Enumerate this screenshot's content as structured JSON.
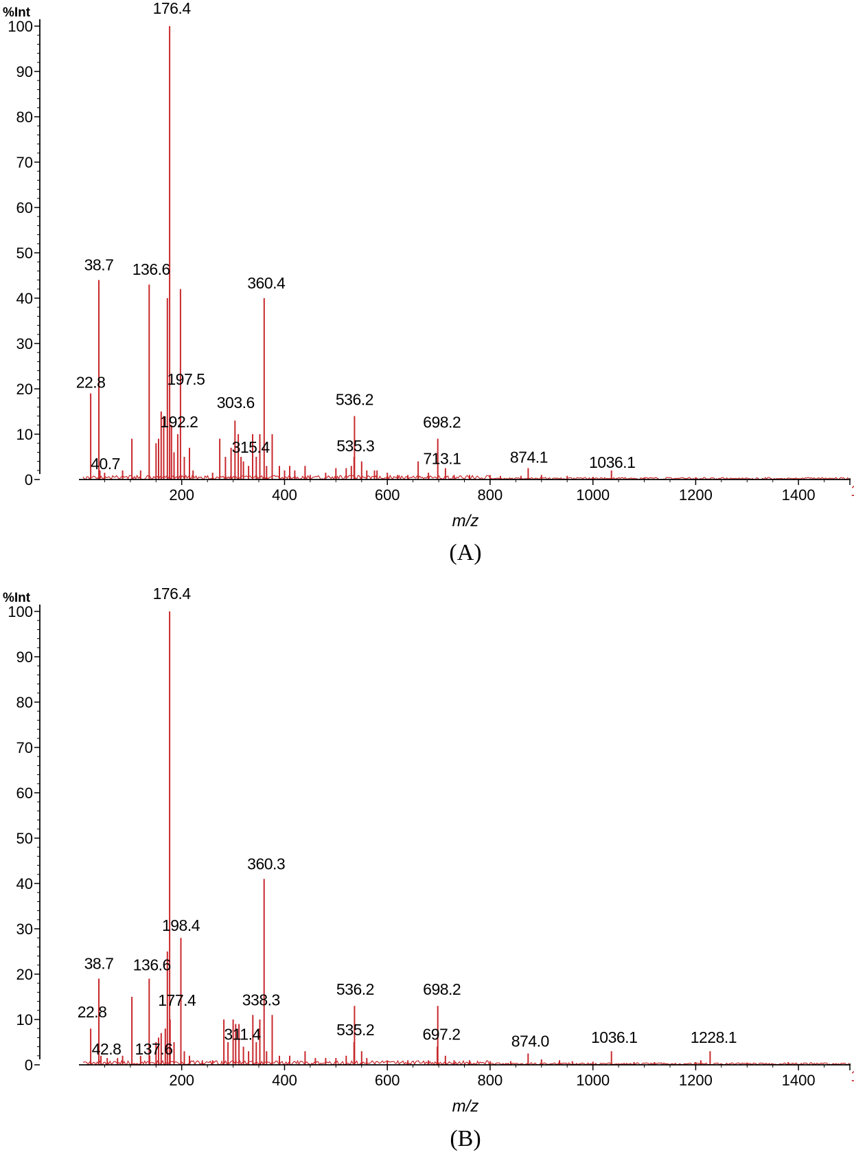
{
  "colors": {
    "trace": "#c8282c",
    "axis": "#000000",
    "edge_mark": "#c8282c"
  },
  "chart_data": [
    {
      "type": "line",
      "panel": "A",
      "caption": "(A)",
      "ylabel": "%Int",
      "xlabel": "m/z",
      "xlim": [
        0,
        1500
      ],
      "ylim": [
        0,
        100
      ],
      "xticks": [
        200,
        400,
        600,
        800,
        1000,
        1200,
        1400
      ],
      "yticks": [
        0,
        10,
        20,
        30,
        40,
        50,
        60,
        70,
        80,
        90,
        100
      ],
      "edge_mark": "1",
      "peaks": [
        [
          22.8,
          19
        ],
        [
          38.7,
          44
        ],
        [
          40.7,
          2
        ],
        [
          50,
          1.5
        ],
        [
          85,
          2
        ],
        [
          103,
          9
        ],
        [
          120,
          2
        ],
        [
          136.6,
          43
        ],
        [
          150,
          8
        ],
        [
          155,
          9
        ],
        [
          160,
          15
        ],
        [
          165,
          14
        ],
        [
          172,
          40
        ],
        [
          176.4,
          100
        ],
        [
          180,
          12
        ],
        [
          185,
          6
        ],
        [
          192.2,
          10
        ],
        [
          197.5,
          42
        ],
        [
          205,
          5
        ],
        [
          215,
          7
        ],
        [
          222,
          2
        ],
        [
          260,
          1.5
        ],
        [
          274,
          9
        ],
        [
          285,
          5
        ],
        [
          296,
          7
        ],
        [
          303.6,
          13
        ],
        [
          310,
          10
        ],
        [
          315.4,
          5
        ],
        [
          320,
          4
        ],
        [
          330,
          3
        ],
        [
          338,
          10
        ],
        [
          345,
          5
        ],
        [
          352,
          10
        ],
        [
          360.4,
          40
        ],
        [
          365,
          3
        ],
        [
          376,
          10
        ],
        [
          390,
          3
        ],
        [
          400,
          2
        ],
        [
          410,
          3
        ],
        [
          420,
          2
        ],
        [
          440,
          3
        ],
        [
          450,
          1
        ],
        [
          480,
          1.5
        ],
        [
          500,
          2.5
        ],
        [
          520,
          2.5
        ],
        [
          530,
          3
        ],
        [
          535.3,
          5
        ],
        [
          536.2,
          14
        ],
        [
          550,
          4
        ],
        [
          560,
          2
        ],
        [
          575,
          2
        ],
        [
          580,
          2
        ],
        [
          600,
          1.5
        ],
        [
          620,
          1
        ],
        [
          640,
          1
        ],
        [
          660,
          4
        ],
        [
          680,
          1.5
        ],
        [
          698.2,
          9
        ],
        [
          713.1,
          2.5
        ],
        [
          730,
          1
        ],
        [
          760,
          1
        ],
        [
          800,
          1
        ],
        [
          820,
          0.8
        ],
        [
          860,
          0.8
        ],
        [
          874.1,
          2.5
        ],
        [
          900,
          1
        ],
        [
          950,
          0.8
        ],
        [
          1000,
          0.6
        ],
        [
          1036.1,
          2
        ],
        [
          1100,
          0.5
        ],
        [
          1200,
          0.5
        ]
      ],
      "labels": [
        {
          "text": "176.4",
          "x": 176.4,
          "y": 100
        },
        {
          "text": "38.7",
          "x": 38.7,
          "y": 44
        },
        {
          "text": "136.6",
          "x": 136.6,
          "y": 43
        },
        {
          "text": "360.4",
          "x": 360.4,
          "y": 40
        },
        {
          "text": "22.8",
          "x": 22.8,
          "y": 19
        },
        {
          "text": "197.5",
          "x": 197.5,
          "y": 20
        },
        {
          "text": "192.2",
          "x": 192.2,
          "y": 10
        },
        {
          "text": "303.6",
          "x": 303.6,
          "y": 13
        },
        {
          "text": "315.4",
          "x": 315.4,
          "y": 5
        },
        {
          "text": "40.7",
          "x": 40.7,
          "y": 2
        },
        {
          "text": "536.2",
          "x": 536.2,
          "y": 14
        },
        {
          "text": "535.3",
          "x": 535.3,
          "y": 5
        },
        {
          "text": "698.2",
          "x": 698.2,
          "y": 9
        },
        {
          "text": "713.1",
          "x": 713.1,
          "y": 2.5
        },
        {
          "text": "874.1",
          "x": 874.1,
          "y": 2.5
        },
        {
          "text": "1036.1",
          "x": 1036.1,
          "y": 2
        }
      ]
    },
    {
      "type": "line",
      "panel": "B",
      "caption": "(B)",
      "ylabel": "%Int",
      "xlabel": "m/z",
      "xlim": [
        0,
        1500
      ],
      "ylim": [
        0,
        100
      ],
      "xticks": [
        200,
        400,
        600,
        800,
        1000,
        1200,
        1400
      ],
      "yticks": [
        0,
        10,
        20,
        30,
        40,
        50,
        60,
        70,
        80,
        90,
        100
      ],
      "edge_mark": "1",
      "peaks": [
        [
          22.8,
          8
        ],
        [
          38.7,
          19
        ],
        [
          42.8,
          2
        ],
        [
          55,
          1.5
        ],
        [
          75,
          1.5
        ],
        [
          85,
          2
        ],
        [
          103,
          15
        ],
        [
          120,
          2
        ],
        [
          136.6,
          19
        ],
        [
          137.6,
          2
        ],
        [
          150,
          5
        ],
        [
          155,
          6
        ],
        [
          160,
          7
        ],
        [
          168,
          8
        ],
        [
          172,
          25
        ],
        [
          176.4,
          100
        ],
        [
          177.4,
          10
        ],
        [
          185,
          5
        ],
        [
          198.4,
          28
        ],
        [
          205,
          3
        ],
        [
          215,
          2
        ],
        [
          240,
          1
        ],
        [
          260,
          1
        ],
        [
          282,
          10
        ],
        [
          290,
          5
        ],
        [
          300,
          10
        ],
        [
          305,
          9
        ],
        [
          311.4,
          9
        ],
        [
          320,
          4
        ],
        [
          330,
          3
        ],
        [
          338.3,
          11
        ],
        [
          345,
          5
        ],
        [
          352,
          10
        ],
        [
          360.3,
          41
        ],
        [
          365,
          3
        ],
        [
          376,
          11
        ],
        [
          390,
          2
        ],
        [
          410,
          2
        ],
        [
          440,
          3
        ],
        [
          460,
          1.5
        ],
        [
          480,
          1.5
        ],
        [
          500,
          1.5
        ],
        [
          520,
          2
        ],
        [
          535.2,
          5
        ],
        [
          536.2,
          13
        ],
        [
          550,
          3
        ],
        [
          560,
          1.5
        ],
        [
          600,
          1
        ],
        [
          640,
          1
        ],
        [
          680,
          1
        ],
        [
          697.2,
          4
        ],
        [
          698.2,
          13
        ],
        [
          713,
          2
        ],
        [
          730,
          1
        ],
        [
          760,
          1
        ],
        [
          800,
          0.8
        ],
        [
          840,
          0.8
        ],
        [
          874.0,
          2.5
        ],
        [
          900,
          1.2
        ],
        [
          935,
          1
        ],
        [
          960,
          0.8
        ],
        [
          1000,
          0.7
        ],
        [
          1036.1,
          3
        ],
        [
          1080,
          0.6
        ],
        [
          1120,
          0.6
        ],
        [
          1200,
          0.6
        ],
        [
          1210,
          1
        ],
        [
          1228.1,
          3
        ],
        [
          1300,
          0.5
        ],
        [
          1380,
          0.6
        ]
      ],
      "labels": [
        {
          "text": "176.4",
          "x": 176.4,
          "y": 100
        },
        {
          "text": "360.3",
          "x": 360.3,
          "y": 41
        },
        {
          "text": "198.4",
          "x": 198.4,
          "y": 28
        },
        {
          "text": "38.7",
          "x": 38.7,
          "y": 19
        },
        {
          "text": "136.6",
          "x": 136.6,
          "y": 19
        },
        {
          "text": "177.4",
          "x": 177.4,
          "y": 10
        },
        {
          "text": "338.3",
          "x": 338.3,
          "y": 11
        },
        {
          "text": "22.8",
          "x": 22.8,
          "y": 8
        },
        {
          "text": "42.8",
          "x": 42.8,
          "y": 2
        },
        {
          "text": "137.6",
          "x": 137.6,
          "y": 2
        },
        {
          "text": "311.4",
          "x": 311.4,
          "y": 4
        },
        {
          "text": "536.2",
          "x": 536.2,
          "y": 13
        },
        {
          "text": "535.2",
          "x": 535.2,
          "y": 5
        },
        {
          "text": "698.2",
          "x": 698.2,
          "y": 13
        },
        {
          "text": "697.2",
          "x": 697.2,
          "y": 4
        },
        {
          "text": "874.0",
          "x": 874.0,
          "y": 2.5
        },
        {
          "text": "1036.1",
          "x": 1036.1,
          "y": 3
        },
        {
          "text": "1228.1",
          "x": 1228.1,
          "y": 3
        }
      ]
    }
  ]
}
